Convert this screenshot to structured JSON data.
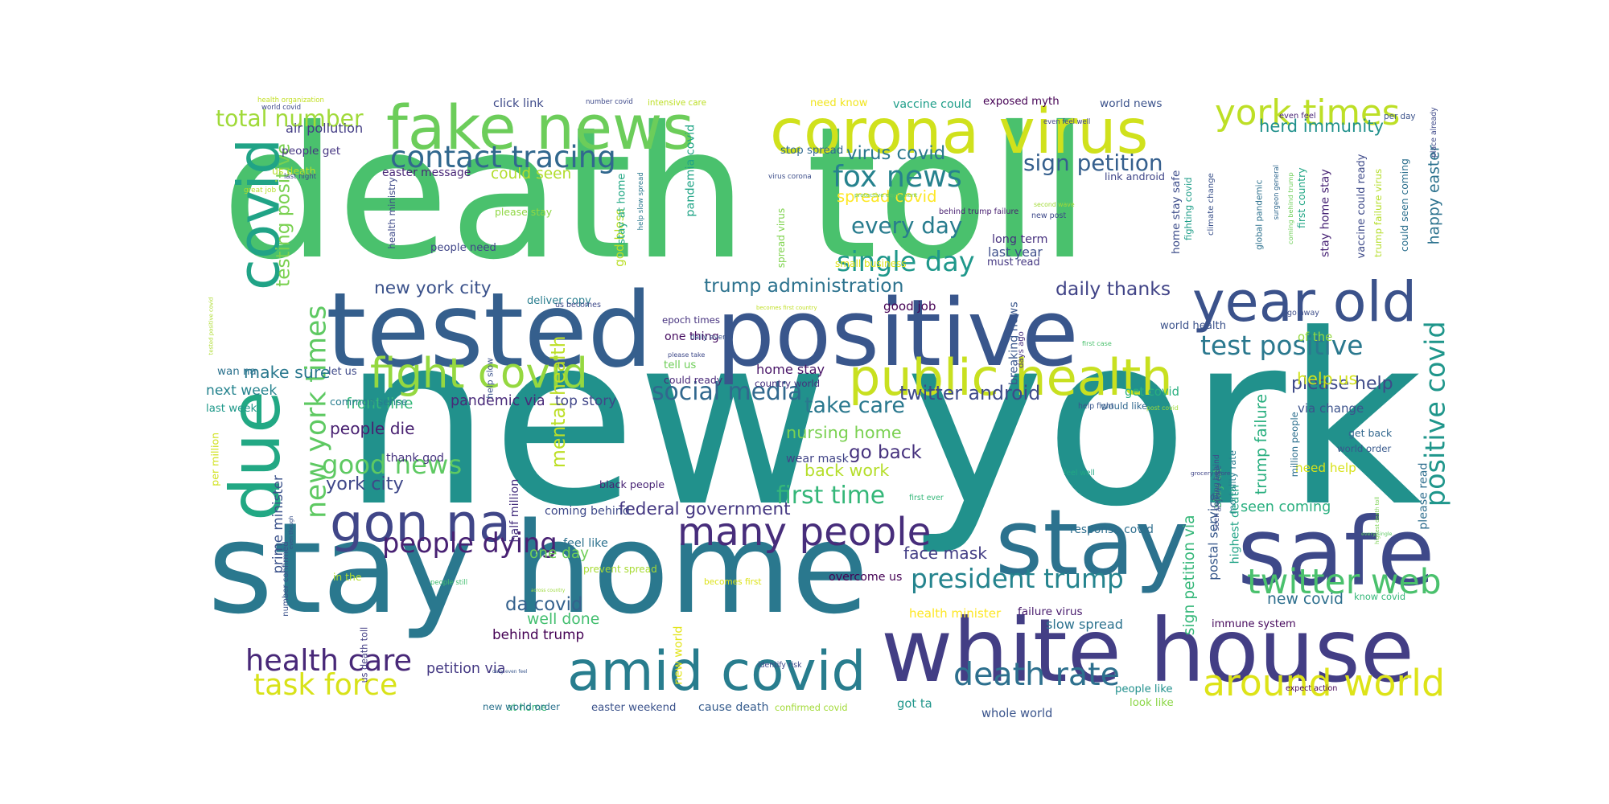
{
  "words": [
    {
      "text": "new york",
      "color": "#21918c"
    },
    {
      "text": "death toll",
      "color": "#4ac16d"
    },
    {
      "text": "stay home",
      "color": "#2a788e"
    },
    {
      "text": "tested",
      "color": "#355f8d"
    },
    {
      "text": "positive",
      "color": "#39568c"
    },
    {
      "text": "white house",
      "color": "#433e85"
    },
    {
      "text": "safe",
      "color": "#3e4989"
    },
    {
      "text": "stay",
      "color": "#2c728e"
    },
    {
      "text": "corona virus",
      "color": "#d0e11c"
    },
    {
      "text": "fake news",
      "color": "#6ccd5a"
    },
    {
      "text": "covid",
      "color": "#20a386"
    },
    {
      "text": "due",
      "color": "#22a884"
    },
    {
      "text": "year old",
      "color": "#3b528b"
    },
    {
      "text": "amid covid",
      "color": "#287d8e"
    },
    {
      "text": "many people",
      "color": "#472d7b"
    },
    {
      "text": "gon na",
      "color": "#404688"
    },
    {
      "text": "public health",
      "color": "#c8e020"
    },
    {
      "text": "fight covid",
      "color": "#95d840"
    },
    {
      "text": "york times",
      "color": "#bddf26"
    },
    {
      "text": "contact tracing",
      "color": "#31688e"
    },
    {
      "text": "twitter web",
      "color": "#4ac16d"
    },
    {
      "text": "around world",
      "color": "#dde318"
    },
    {
      "text": "task force",
      "color": "#d8e219"
    },
    {
      "text": "health care",
      "color": "#482878"
    },
    {
      "text": "death rate",
      "color": "#2d708e"
    },
    {
      "text": "new york times",
      "color": "#5ec962"
    },
    {
      "text": "positive covid",
      "color": "#1f968b"
    },
    {
      "text": "test positive",
      "color": "#2a788e"
    },
    {
      "text": "president trump",
      "color": "#25848e"
    },
    {
      "text": "people dying",
      "color": "#482173"
    },
    {
      "text": "social media",
      "color": "#31688e"
    },
    {
      "text": "total number",
      "color": "#a0da39"
    },
    {
      "text": "fox news",
      "color": "#26828e"
    },
    {
      "text": "sign petition",
      "color": "#355f8d"
    },
    {
      "text": "single day",
      "color": "#1f988b"
    },
    {
      "text": "first time",
      "color": "#35b779"
    },
    {
      "text": "good news",
      "color": "#5ec962"
    },
    {
      "text": "twitter android",
      "color": "#3e4a89"
    },
    {
      "text": "herd immunity",
      "color": "#21918c"
    },
    {
      "text": "testing positive",
      "color": "#7ad151"
    },
    {
      "text": "every day",
      "color": "#287c8e"
    },
    {
      "text": "take care",
      "color": "#2a788e"
    },
    {
      "text": "trump administration",
      "color": "#2c728e"
    },
    {
      "text": "new york city",
      "color": "#3b528b"
    },
    {
      "text": "daily thanks",
      "color": "#414487"
    },
    {
      "text": "virus covid",
      "color": "#2a788e"
    },
    {
      "text": "spread covid",
      "color": "#fde725"
    },
    {
      "text": "happy easter",
      "color": "#2c728e"
    },
    {
      "text": "trump failure",
      "color": "#29af7f"
    },
    {
      "text": "postal service",
      "color": "#38598c"
    },
    {
      "text": "please help",
      "color": "#3e4a89"
    },
    {
      "text": "nursing home",
      "color": "#7ad151"
    },
    {
      "text": "back work",
      "color": "#b5de2b"
    },
    {
      "text": "go back",
      "color": "#46327e"
    },
    {
      "text": "make sure",
      "color": "#2a788e"
    },
    {
      "text": "front line",
      "color": "#35b779"
    },
    {
      "text": "people die",
      "color": "#482071"
    },
    {
      "text": "york city",
      "color": "#3f4889"
    },
    {
      "text": "prime minister",
      "color": "#3b528b"
    },
    {
      "text": "federal government",
      "color": "#453882"
    },
    {
      "text": "face mask",
      "color": "#433e85"
    },
    {
      "text": "one day",
      "color": "#6ece58"
    },
    {
      "text": "well done",
      "color": "#44bf70"
    },
    {
      "text": "da covid",
      "color": "#34618d"
    },
    {
      "text": "behind trump",
      "color": "#440154"
    },
    {
      "text": "petition via",
      "color": "#443983"
    },
    {
      "text": "new covid",
      "color": "#2e6f8e"
    },
    {
      "text": "seen coming",
      "color": "#29af7f"
    },
    {
      "text": "sign petition via",
      "color": "#35b779"
    },
    {
      "text": "pandemia covid",
      "color": "#20a486"
    },
    {
      "text": "god bless",
      "color": "#bade28"
    },
    {
      "text": "mental health",
      "color": "#bddf26"
    },
    {
      "text": "air pollution",
      "color": "#433d84"
    },
    {
      "text": "could seen",
      "color": "#b2dd2d"
    },
    {
      "text": "long term",
      "color": "#46307e"
    },
    {
      "text": "last year",
      "color": "#3d4e8a"
    },
    {
      "text": "first country",
      "color": "#22a785"
    },
    {
      "text": "help us",
      "color": "#d2e21b"
    },
    {
      "text": "get back",
      "color": "#31678e"
    },
    {
      "text": "world order",
      "color": "#38598c"
    },
    {
      "text": "need help",
      "color": "#d8e219"
    },
    {
      "text": "small business",
      "color": "#dfe318"
    },
    {
      "text": "good job",
      "color": "#440154"
    },
    {
      "text": "next week",
      "color": "#25838e"
    },
    {
      "text": "last week",
      "color": "#1f998a"
    },
    {
      "text": "common sense",
      "color": "#287d8e"
    },
    {
      "text": "pandemic via",
      "color": "#482979"
    },
    {
      "text": "top story",
      "color": "#404688"
    },
    {
      "text": "thank god",
      "color": "#46337f"
    },
    {
      "text": "black people",
      "color": "#482475"
    },
    {
      "text": "coming behind",
      "color": "#3e4989"
    },
    {
      "text": "feel like",
      "color": "#2d718e"
    },
    {
      "text": "prevent spread",
      "color": "#a8db34"
    },
    {
      "text": "becomes first",
      "color": "#dce319"
    },
    {
      "text": "overcome us",
      "color": "#440154"
    },
    {
      "text": "health minister",
      "color": "#fde725"
    },
    {
      "text": "failure virus",
      "color": "#481b6d"
    },
    {
      "text": "slow spread",
      "color": "#2c728e"
    },
    {
      "text": "immune system",
      "color": "#46085c"
    },
    {
      "text": "response covid",
      "color": "#2e6e8e"
    },
    {
      "text": "got ta",
      "color": "#1f968b"
    },
    {
      "text": "whole world",
      "color": "#3a548c"
    },
    {
      "text": "people like",
      "color": "#21908d"
    },
    {
      "text": "look like",
      "color": "#8bd646"
    },
    {
      "text": "cause death",
      "color": "#365c8d"
    },
    {
      "text": "confirmed covid",
      "color": "#a2da37"
    },
    {
      "text": "easter weekend",
      "color": "#3b528b"
    },
    {
      "text": "at home",
      "color": "#38b977"
    },
    {
      "text": "new world order",
      "color": "#2c728e"
    },
    {
      "text": "click link",
      "color": "#3e4a89"
    },
    {
      "text": "intensive care",
      "color": "#bddf26"
    },
    {
      "text": "need know",
      "color": "#f1e51d"
    },
    {
      "text": "vaccine could",
      "color": "#1f9e89"
    },
    {
      "text": "exposed myth",
      "color": "#440154"
    },
    {
      "text": "world news",
      "color": "#3b528b"
    },
    {
      "text": "people get",
      "color": "#453581"
    },
    {
      "text": "us death",
      "color": "#b8de29"
    },
    {
      "text": "easter message",
      "color": "#482677"
    },
    {
      "text": "please stay",
      "color": "#8fd744"
    },
    {
      "text": "people need",
      "color": "#404688"
    },
    {
      "text": "deliver copy",
      "color": "#287d8e"
    },
    {
      "text": "epoch times",
      "color": "#46327e"
    },
    {
      "text": "one thing",
      "color": "#470e61"
    },
    {
      "text": "tell us",
      "color": "#6ece58"
    },
    {
      "text": "could ready",
      "color": "#482878"
    },
    {
      "text": "home stay",
      "color": "#481467"
    },
    {
      "text": "country world",
      "color": "#46307e"
    },
    {
      "text": "wear mask",
      "color": "#414487"
    },
    {
      "text": "let us",
      "color": "#3e4989"
    },
    {
      "text": "wan na",
      "color": "#2c728e"
    },
    {
      "text": "get covid",
      "color": "#29af7f"
    },
    {
      "text": "would like",
      "color": "#31688e"
    },
    {
      "text": "breaking news",
      "color": "#39568c"
    },
    {
      "text": "world health",
      "color": "#3b528b"
    },
    {
      "text": "must read",
      "color": "#453882"
    },
    {
      "text": "link android",
      "color": "#404688"
    },
    {
      "text": "behind trump failure",
      "color": "#481f70"
    },
    {
      "text": "stop spread",
      "color": "#31688e"
    },
    {
      "text": "help slow",
      "color": "#3b528b"
    },
    {
      "text": "stay at home",
      "color": "#22a884"
    },
    {
      "text": "help slow spread",
      "color": "#2a788e"
    },
    {
      "text": "spread virus",
      "color": "#7fd34e"
    },
    {
      "text": "health ministry",
      "color": "#3e4989"
    },
    {
      "text": "home stay safe",
      "color": "#3d4d8a"
    },
    {
      "text": "fighting covid",
      "color": "#1f9e89"
    },
    {
      "text": "climate change",
      "color": "#3b528b"
    },
    {
      "text": "global pandemic",
      "color": "#2d718e"
    },
    {
      "text": "surgeon general",
      "color": "#31688e"
    },
    {
      "text": "coming behind trump",
      "color": "#6ece58"
    },
    {
      "text": "stay home stay",
      "color": "#482475"
    },
    {
      "text": "vaccine could ready",
      "color": "#3e4a89"
    },
    {
      "text": "trump failure virus",
      "color": "#b5de2b"
    },
    {
      "text": "could seen coming",
      "color": "#2d708e"
    },
    {
      "text": "place already",
      "color": "#3e4989"
    },
    {
      "text": "per day",
      "color": "#3b528b"
    },
    {
      "text": "even feel",
      "color": "#482475"
    },
    {
      "text": "go away",
      "color": "#3d4d8a"
    },
    {
      "text": "of the",
      "color": "#95d840"
    },
    {
      "text": "via change",
      "color": "#3b528b"
    },
    {
      "text": "million people",
      "color": "#2d708e"
    },
    {
      "text": "mortality rate",
      "color": "#287d8e"
    },
    {
      "text": "highest death",
      "color": "#20a386"
    },
    {
      "text": "stay at",
      "color": "#44bf70"
    },
    {
      "text": "seen coming behind",
      "color": "#3d4e8a"
    },
    {
      "text": "anyone else",
      "color": "#3b528b"
    },
    {
      "text": "please read",
      "color": "#2e6e8e"
    },
    {
      "text": "highest death toll",
      "color": "#7ad151"
    },
    {
      "text": "every single",
      "color": "#5ec962"
    },
    {
      "text": "know covid",
      "color": "#35b779"
    },
    {
      "text": "expect action",
      "color": "#440154"
    },
    {
      "text": "daily even feel",
      "color": "#39568c"
    },
    {
      "text": "identify risk",
      "color": "#3e4989"
    },
    {
      "text": "new world",
      "color": "#e2e418"
    },
    {
      "text": "us death toll",
      "color": "#433e85"
    },
    {
      "text": "half million",
      "color": "#46307e"
    },
    {
      "text": "across country",
      "color": "#9bd93c"
    },
    {
      "text": "in the",
      "color": "#b5de2b"
    },
    {
      "text": "per million",
      "color": "#d0e11c"
    },
    {
      "text": "even though",
      "color": "#3b528b"
    },
    {
      "text": "tested positive covid",
      "color": "#addc30"
    },
    {
      "text": "number confirmed",
      "color": "#3b528b"
    },
    {
      "text": "people still",
      "color": "#44bf70"
    },
    {
      "text": "grocery store",
      "color": "#404688"
    },
    {
      "text": "first ever",
      "color": "#35b779"
    },
    {
      "text": "help fight",
      "color": "#39568c"
    },
    {
      "text": "post covid",
      "color": "#a2da37"
    },
    {
      "text": "feel well",
      "color": "#22a884"
    },
    {
      "text": "days ago",
      "color": "#46327e"
    },
    {
      "text": "becomes first country",
      "color": "#c0df25"
    },
    {
      "text": "us becomes",
      "color": "#3e4a89"
    },
    {
      "text": "please take",
      "color": "#3e4989"
    },
    {
      "text": "daily even",
      "color": "#3b528b"
    },
    {
      "text": "first case",
      "color": "#4ac16d"
    },
    {
      "text": "second wave",
      "color": "#a2da37"
    },
    {
      "text": "new post",
      "color": "#3e4989"
    },
    {
      "text": "even feel well",
      "color": "#414487"
    },
    {
      "text": "virus corona",
      "color": "#3d4e8a"
    },
    {
      "text": "protective equipment",
      "color": "#5ec962"
    },
    {
      "text": "great job",
      "color": "#b5de2b"
    },
    {
      "text": "last night",
      "color": "#3e4989"
    },
    {
      "text": "health organization",
      "color": "#c2df23"
    },
    {
      "text": "world covid",
      "color": "#3e4989"
    },
    {
      "text": "number covid",
      "color": "#3e4989"
    }
  ]
}
